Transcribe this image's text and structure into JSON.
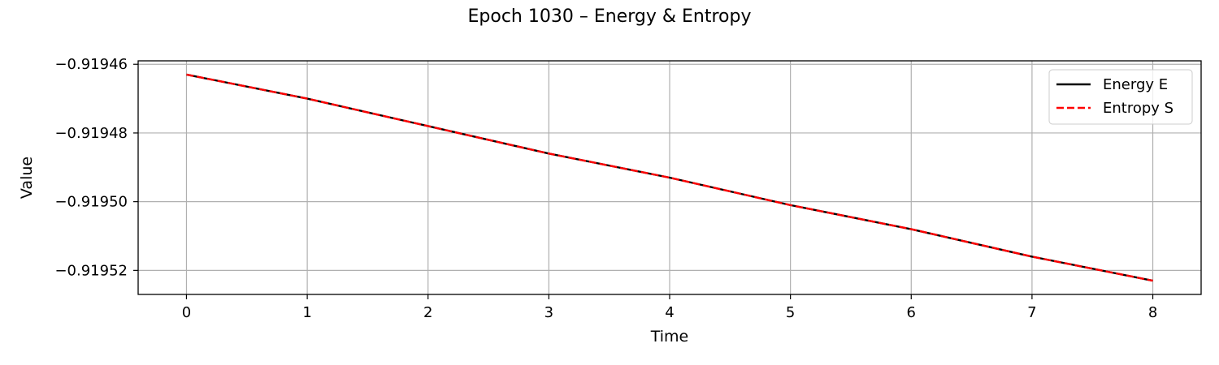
{
  "chart_data": {
    "type": "line",
    "title": "Epoch 1030 – Energy & Entropy",
    "xlabel": "Time",
    "ylabel": "Value",
    "x": [
      0,
      1,
      2,
      3,
      4,
      5,
      6,
      7,
      8
    ],
    "xlim": [
      -0.4,
      8.4
    ],
    "ylim": [
      -0.919527,
      -0.919459
    ],
    "xticks": [
      0,
      1,
      2,
      3,
      4,
      5,
      6,
      7,
      8
    ],
    "xtick_labels": [
      "0",
      "1",
      "2",
      "3",
      "4",
      "5",
      "6",
      "7",
      "8"
    ],
    "yticks": [
      -0.91946,
      -0.91948,
      -0.9195,
      -0.91952
    ],
    "ytick_labels": [
      "−0.91946",
      "−0.91948",
      "−0.91950",
      "−0.91952"
    ],
    "grid": true,
    "legend_position": "top-right",
    "series": [
      {
        "name": "Energy E",
        "color": "#000000",
        "style": "solid",
        "values": [
          -0.919463,
          -0.91947,
          -0.919478,
          -0.919486,
          -0.919493,
          -0.919501,
          -0.919508,
          -0.919516,
          -0.919523
        ]
      },
      {
        "name": "Entropy S",
        "color": "#ff0000",
        "style": "dashed",
        "values": [
          -0.919463,
          -0.91947,
          -0.919478,
          -0.919486,
          -0.919493,
          -0.919501,
          -0.919508,
          -0.919516,
          -0.919523
        ]
      }
    ]
  }
}
